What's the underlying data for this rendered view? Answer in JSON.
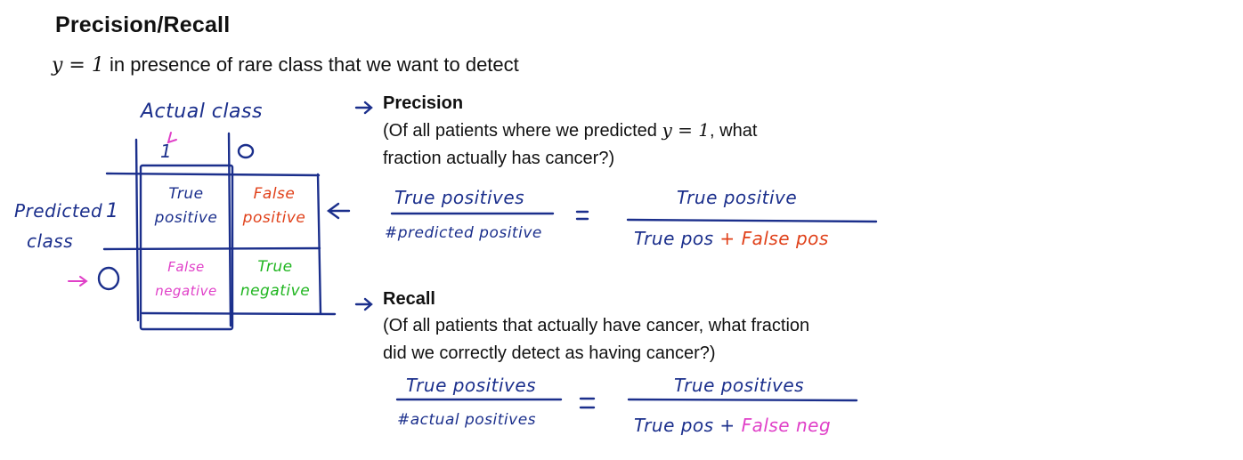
{
  "title": "Precision/Recall",
  "subtitle": {
    "math_var": "y",
    "math_eq": " = 1",
    "text": " in presence of rare class that we want to detect"
  },
  "matrix": {
    "actual_label": "Actual class",
    "actual_one": "1",
    "actual_zero": "0",
    "predicted_label_line1": "Predicted",
    "predicted_label_line2": "class",
    "predicted_one": "1",
    "predicted_zero": "0",
    "true_positive_line1": "True",
    "true_positive_line2": "positive",
    "false_positive_line1": "False",
    "false_positive_line2": "positive",
    "false_negative_line1": "False",
    "false_negative_line2": "negative",
    "true_negative_line1": "True",
    "true_negative_line2": "negative"
  },
  "precision": {
    "heading": "Precision",
    "desc_line1_pre": "(Of all patients where we predicted ",
    "desc_line1_var": "y",
    "desc_line1_eq": " = 1",
    "desc_line1_post": ", what",
    "desc_line2": "fraction actually has cancer?)",
    "frac1_num": "True positives",
    "frac1_den": "#predicted positive",
    "equals": "=",
    "frac2_num": "True positive",
    "frac2_den_a": "True pos",
    "frac2_den_plus": " + ",
    "frac2_den_b": "False pos"
  },
  "recall": {
    "heading": "Recall",
    "desc_line1": "(Of all patients that actually have cancer, what fraction",
    "desc_line2": "did we correctly detect as having cancer?)",
    "frac1_num": "True positives",
    "frac1_den": "#actual positives",
    "equals": "=",
    "frac2_num": "True positives",
    "frac2_den_a": "True pos",
    "frac2_den_plus": " + ",
    "frac2_den_b": "False neg"
  },
  "colors": {
    "ink_blue": "#1b2f8c",
    "ink_red": "#e0411a",
    "ink_magenta": "#e040c8",
    "ink_green": "#1fb51f"
  }
}
